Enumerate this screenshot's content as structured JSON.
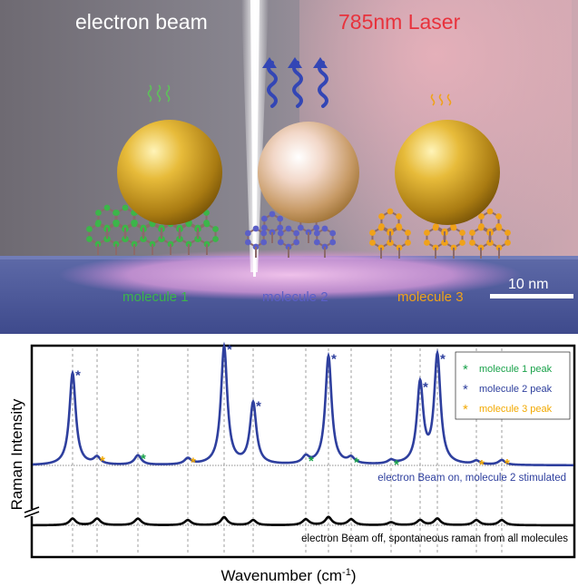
{
  "scene": {
    "beam_label": "electron beam",
    "laser_label": "785nm Laser",
    "molecule_labels": [
      "molecule 1",
      "molecule 2",
      "molecule 3"
    ],
    "scale_bar_label": "10 nm",
    "colors": {
      "molecule1": "#3cb54a",
      "molecule2": "#5b5fc7",
      "molecule3": "#f0a21a",
      "laser_text": "#e8323c",
      "beam": "#cfe8ff"
    }
  },
  "chart_data": {
    "type": "line",
    "ylabel": "Raman Intensity",
    "xlabel_main": "Wavenumber (cm",
    "xlabel_sup": "-1",
    "xlabel_end": ")",
    "legend": [
      {
        "marker": "*",
        "label": "molecule 1 peak",
        "color": "#1aa24a"
      },
      {
        "marker": "*",
        "label": "molecule 2 peak",
        "color": "#2e3f9e"
      },
      {
        "marker": "*",
        "label": "molecule 3 peak",
        "color": "#f2a900"
      }
    ],
    "legend_position": "top-right",
    "peaks": [
      {
        "x": 80,
        "molecule": 2,
        "on_height": 0.78,
        "off_height": 0.09
      },
      {
        "x": 107,
        "molecule": 3,
        "on_height": 0.06,
        "off_height": 0.09
      },
      {
        "x": 152,
        "molecule": 1,
        "on_height": 0.08,
        "off_height": 0.09
      },
      {
        "x": 207,
        "molecule": 3,
        "on_height": 0.05,
        "off_height": 0.07
      },
      {
        "x": 247,
        "molecule": 2,
        "on_height": 1.0,
        "off_height": 0.11
      },
      {
        "x": 279,
        "molecule": 2,
        "on_height": 0.52,
        "off_height": 0.07
      },
      {
        "x": 337,
        "molecule": 1,
        "on_height": 0.06,
        "off_height": 0.08
      },
      {
        "x": 362,
        "molecule": 2,
        "on_height": 0.92,
        "off_height": 0.11
      },
      {
        "x": 387,
        "molecule": 1,
        "on_height": 0.05,
        "off_height": 0.08
      },
      {
        "x": 431,
        "molecule": 1,
        "on_height": 0.03,
        "off_height": 0.04
      },
      {
        "x": 463,
        "molecule": 2,
        "on_height": 0.68,
        "off_height": 0.07
      },
      {
        "x": 482,
        "molecule": 2,
        "on_height": 0.92,
        "off_height": 0.09
      },
      {
        "x": 525,
        "molecule": 3,
        "on_height": 0.03,
        "off_height": 0.07
      },
      {
        "x": 553,
        "molecule": 3,
        "on_height": 0.04,
        "off_height": 0.07
      }
    ],
    "traces": [
      {
        "label": "electron Beam on, molecule 2 stimulated",
        "color": "#2e3f9e"
      },
      {
        "label": "electron Beam off, spontaneous raman from all molecules",
        "color": "#000000"
      }
    ]
  }
}
